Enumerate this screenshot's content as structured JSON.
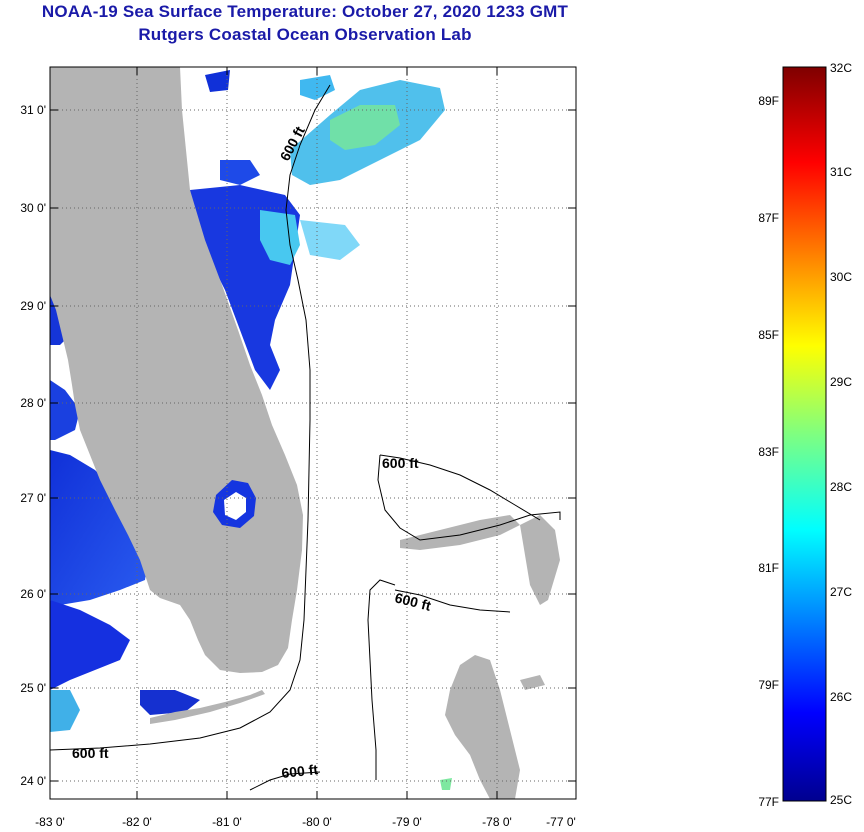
{
  "header": {
    "title_line1": "NOAA-19 Sea Surface Temperature:  October 27, 2020 1233 GMT",
    "title_line2": "Rutgers Coastal Ocean Observation Lab"
  },
  "map": {
    "lat_labels": [
      "31 0'",
      "30 0'",
      "29 0'",
      "28 0'",
      "27 0'",
      "26 0'",
      "25 0'",
      "24 0'"
    ],
    "lon_labels": [
      "-83 0'",
      "-82 0'",
      "-81 0'",
      "-80 0'",
      "-79 0'",
      "-78 0'",
      "-77 0'"
    ],
    "isobath_labels": [
      "600 ft",
      "600 ft",
      "600 ft",
      "600 ft",
      "600 ft"
    ],
    "colors": {
      "land": "#b4b4b4",
      "ocean": "#ffffff",
      "grid": "#555555"
    }
  },
  "colorbar": {
    "celsius_labels": [
      "32C",
      "31C",
      "30C",
      "29C",
      "28C",
      "27C",
      "26C",
      "25C"
    ],
    "fahrenheit_labels": [
      "89F",
      "87F",
      "85F",
      "83F",
      "81F",
      "79F",
      "77F"
    ]
  }
}
